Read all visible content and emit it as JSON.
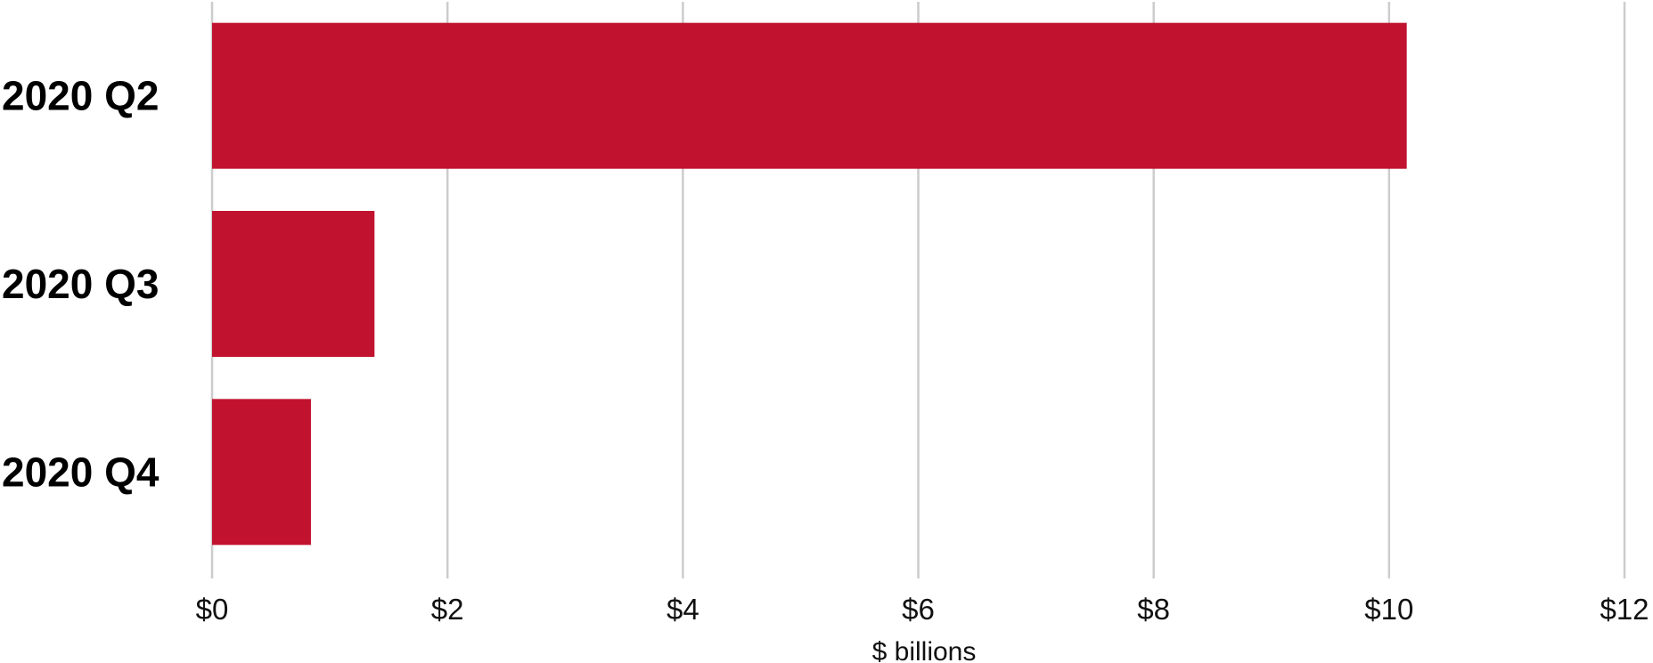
{
  "chart_data": {
    "type": "bar",
    "orientation": "horizontal",
    "categories": [
      "2020 Q2",
      "2020 Q3",
      "2020 Q4"
    ],
    "values": [
      10.15,
      1.38,
      0.84
    ],
    "xlabel": "$ billions",
    "ylabel": "",
    "title": "",
    "xlim": [
      0,
      12
    ],
    "x_ticks": [
      0,
      2,
      4,
      6,
      8,
      10,
      12
    ],
    "x_tick_labels": [
      "$0",
      "$2",
      "$4",
      "$6",
      "$8",
      "$10",
      "$12"
    ],
    "grid": "vertical",
    "legend": "none",
    "colors": {
      "bar": "#C1132F",
      "grid": "#CCCCCC",
      "text": "#000000"
    }
  }
}
